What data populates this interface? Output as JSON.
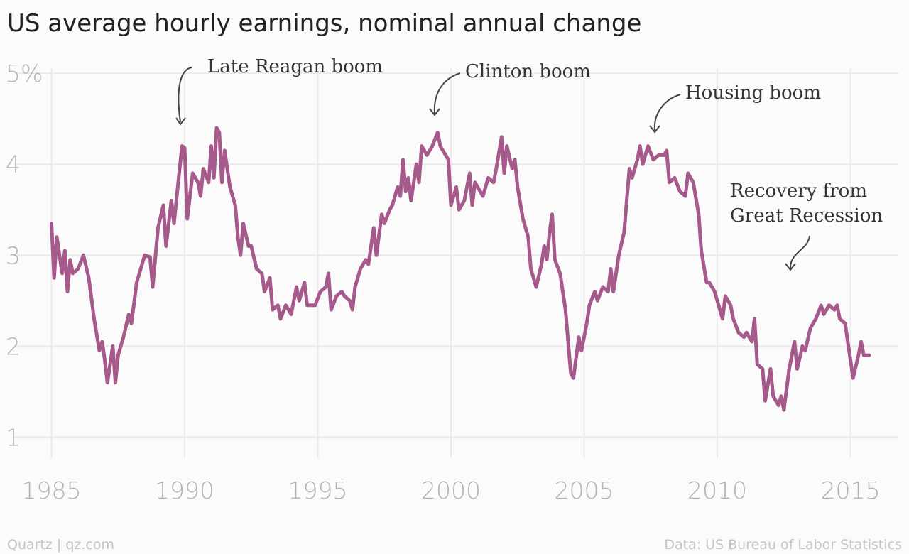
{
  "chart_data": {
    "type": "line",
    "title": "US average hourly earnings, nominal annual change",
    "source_left": "Quartz | qz.com",
    "source_right": "Data: US Bureau of Labor Statistics",
    "annotations": [
      {
        "text": "Late Reagan boom"
      },
      {
        "text": "Clinton boom"
      },
      {
        "text": "Housing boom"
      },
      {
        "lines": [
          "Recovery from",
          "Great Recession"
        ]
      }
    ],
    "xlim": [
      1983.6,
      2016.8
    ],
    "xticks": [
      1985,
      1990,
      1995,
      2000,
      2005,
      2010,
      2015
    ],
    "ylim": [
      0.73,
      5.22
    ],
    "yticks": [
      {
        "value": 5,
        "label": "5%"
      },
      4,
      3,
      2,
      1
    ],
    "grid": true,
    "x": [
      1985.0,
      1985.1,
      1985.2,
      1985.4,
      1985.5,
      1985.6,
      1985.7,
      1985.8,
      1986.0,
      1986.2,
      1986.4,
      1986.6,
      1986.8,
      1986.9,
      1987.0,
      1987.1,
      1987.3,
      1987.4,
      1987.5,
      1987.7,
      1987.9,
      1988.0,
      1988.2,
      1988.5,
      1988.7,
      1988.8,
      1989.0,
      1989.2,
      1989.3,
      1989.5,
      1989.6,
      1989.9,
      1990.0,
      1990.1,
      1990.3,
      1990.5,
      1990.6,
      1990.7,
      1990.9,
      1991.0,
      1991.1,
      1991.2,
      1991.3,
      1991.4,
      1991.5,
      1991.7,
      1991.9,
      1992.0,
      1992.1,
      1992.2,
      1992.4,
      1992.5,
      1992.7,
      1992.9,
      1993.0,
      1993.2,
      1993.3,
      1993.5,
      1993.6,
      1993.8,
      1994.0,
      1994.2,
      1994.3,
      1994.5,
      1994.6,
      1994.9,
      1995.1,
      1995.3,
      1995.4,
      1995.5,
      1995.7,
      1995.9,
      1996.0,
      1996.2,
      1996.3,
      1996.4,
      1996.6,
      1996.8,
      1996.9,
      1997.1,
      1997.2,
      1997.4,
      1997.5,
      1997.7,
      1997.8,
      1998.0,
      1998.1,
      1998.2,
      1998.3,
      1998.4,
      1998.5,
      1998.7,
      1998.8,
      1998.9,
      1999.1,
      1999.3,
      1999.5,
      1999.6,
      1999.8,
      1999.9,
      2000.0,
      2000.2,
      2000.3,
      2000.5,
      2000.7,
      2000.8,
      2000.9,
      2001.2,
      2001.4,
      2001.6,
      2001.7,
      2001.9,
      2002.0,
      2002.1,
      2002.3,
      2002.4,
      2002.5,
      2002.7,
      2002.9,
      2003.0,
      2003.2,
      2003.4,
      2003.5,
      2003.6,
      2003.7,
      2003.8,
      2003.9,
      2004.1,
      2004.3,
      2004.4,
      2004.5,
      2004.6,
      2004.8,
      2004.9,
      2005.1,
      2005.2,
      2005.4,
      2005.5,
      2005.7,
      2005.9,
      2006.0,
      2006.1,
      2006.3,
      2006.5,
      2006.6,
      2006.7,
      2006.8,
      2007.0,
      2007.1,
      2007.2,
      2007.4,
      2007.6,
      2007.8,
      2008.0,
      2008.1,
      2008.2,
      2008.4,
      2008.6,
      2008.8,
      2008.9,
      2009.1,
      2009.3,
      2009.4,
      2009.6,
      2009.7,
      2009.9,
      2010.0,
      2010.2,
      2010.3,
      2010.5,
      2010.6,
      2010.8,
      2011.0,
      2011.1,
      2011.3,
      2011.4,
      2011.5,
      2011.7,
      2011.8,
      2012.0,
      2012.1,
      2012.3,
      2012.4,
      2012.5,
      2012.7,
      2012.9,
      2013.0,
      2013.2,
      2013.3,
      2013.5,
      2013.7,
      2013.9,
      2014.0,
      2014.2,
      2014.4,
      2014.5,
      2014.6,
      2014.8,
      2015.0,
      2015.1,
      2015.3,
      2015.4,
      2015.5,
      2015.7
    ],
    "series": [
      {
        "color": "#a65a8b",
        "values": [
          3.35,
          2.75,
          3.2,
          2.8,
          3.05,
          2.6,
          2.95,
          2.8,
          2.85,
          3.0,
          2.75,
          2.3,
          1.95,
          2.05,
          1.85,
          1.6,
          2.0,
          1.6,
          1.9,
          2.1,
          2.35,
          2.25,
          2.7,
          3.0,
          2.98,
          2.65,
          3.3,
          3.55,
          3.1,
          3.6,
          3.35,
          4.2,
          4.18,
          3.4,
          3.9,
          3.8,
          3.65,
          3.95,
          3.8,
          4.2,
          3.85,
          4.4,
          4.35,
          3.8,
          4.15,
          3.75,
          3.55,
          3.2,
          3.0,
          3.35,
          3.1,
          3.1,
          2.85,
          2.8,
          2.6,
          2.75,
          2.4,
          2.45,
          2.3,
          2.45,
          2.35,
          2.65,
          2.5,
          2.7,
          2.45,
          2.45,
          2.6,
          2.65,
          2.8,
          2.4,
          2.55,
          2.6,
          2.55,
          2.5,
          2.4,
          2.65,
          2.85,
          2.95,
          2.9,
          3.3,
          3.0,
          3.45,
          3.35,
          3.5,
          3.55,
          3.75,
          3.65,
          4.05,
          3.7,
          3.85,
          3.6,
          4.0,
          3.8,
          4.2,
          4.1,
          4.2,
          4.35,
          4.2,
          4.1,
          4.05,
          3.55,
          3.75,
          3.5,
          3.6,
          3.9,
          3.55,
          3.8,
          3.65,
          3.85,
          3.8,
          3.95,
          4.3,
          3.9,
          4.2,
          3.95,
          4.05,
          3.75,
          3.4,
          3.2,
          2.85,
          2.65,
          2.9,
          3.1,
          2.95,
          3.25,
          3.45,
          2.95,
          2.8,
          2.4,
          2.05,
          1.7,
          1.65,
          2.1,
          1.95,
          2.25,
          2.45,
          2.6,
          2.5,
          2.65,
          2.6,
          2.85,
          2.6,
          3.0,
          3.25,
          3.6,
          3.95,
          3.85,
          4.05,
          4.2,
          4.0,
          4.2,
          4.05,
          4.1,
          4.1,
          4.15,
          3.8,
          3.85,
          3.7,
          3.65,
          3.9,
          3.8,
          3.45,
          3.05,
          2.7,
          2.7,
          2.6,
          2.5,
          2.3,
          2.55,
          2.45,
          2.3,
          2.15,
          2.1,
          2.15,
          2.05,
          2.3,
          1.8,
          1.75,
          1.4,
          1.75,
          1.45,
          1.35,
          1.45,
          1.3,
          1.75,
          2.05,
          1.75,
          2.0,
          1.95,
          2.2,
          2.3,
          2.45,
          2.35,
          2.45,
          2.4,
          2.45,
          2.3,
          2.25,
          1.85,
          1.65,
          1.9,
          2.05,
          1.9,
          1.9
        ]
      }
    ]
  }
}
